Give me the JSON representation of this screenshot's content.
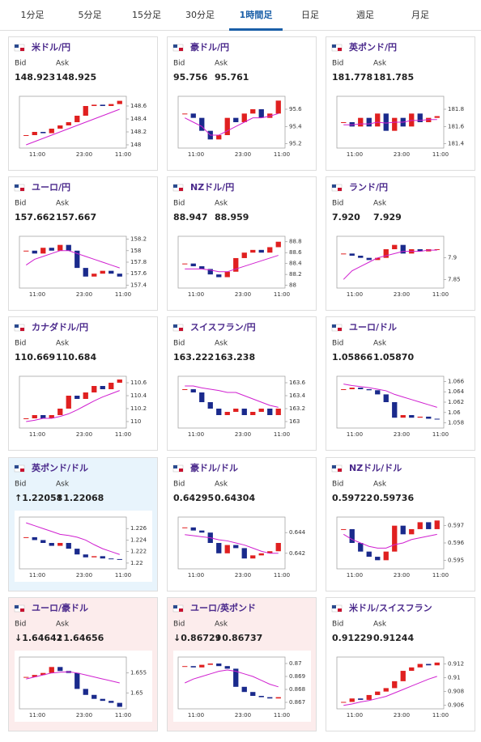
{
  "tabs": {
    "items": [
      "1分足",
      "5分足",
      "15分足",
      "30分足",
      "1時間足",
      "日足",
      "週足",
      "月足"
    ],
    "active": 4
  },
  "bid_label": "Bid",
  "ask_label": "Ask",
  "x_labels": [
    "11:00",
    "23:00",
    "11:00"
  ],
  "cards": [
    {
      "name": "米ドル/円",
      "bid": "148.923",
      "ask": "148.925",
      "chart": {
        "ylim": [
          147.95,
          148.75
        ],
        "yticks": [
          148,
          148.2,
          148.4,
          148.6
        ],
        "close": [
          148.15,
          148.2,
          148.18,
          148.25,
          148.3,
          148.35,
          148.45,
          148.6,
          148.62,
          148.6,
          148.63,
          148.68
        ],
        "ma": [
          148.0,
          148.05,
          148.1,
          148.15,
          148.2,
          148.25,
          148.3,
          148.35,
          148.4,
          148.45,
          148.5,
          148.55
        ]
      }
    },
    {
      "name": "豪ドル/円",
      "bid": "95.756",
      "ask": "95.761",
      "chart": {
        "ylim": [
          95.15,
          95.75
        ],
        "yticks": [
          95.2,
          95.4,
          95.6
        ],
        "close": [
          95.55,
          95.5,
          95.35,
          95.25,
          95.3,
          95.5,
          95.45,
          95.55,
          95.6,
          95.5,
          95.55,
          95.7
        ],
        "ma": [
          95.5,
          95.45,
          95.4,
          95.3,
          95.3,
          95.35,
          95.4,
          95.45,
          95.5,
          95.5,
          95.52,
          95.55
        ]
      }
    },
    {
      "name": "英ポンド/円",
      "bid": "181.778",
      "ask": "181.785",
      "chart": {
        "ylim": [
          181.35,
          181.95
        ],
        "yticks": [
          181.4,
          181.6,
          181.8
        ],
        "close": [
          181.65,
          181.6,
          181.7,
          181.6,
          181.75,
          181.55,
          181.7,
          181.6,
          181.75,
          181.65,
          181.7,
          181.72
        ],
        "ma": [
          181.62,
          181.62,
          181.63,
          181.63,
          181.65,
          181.64,
          181.65,
          181.65,
          181.67,
          181.67,
          181.68,
          181.68
        ]
      }
    },
    {
      "name": "ユーロ/円",
      "bid": "157.662",
      "ask": "157.667",
      "chart": {
        "ylim": [
          157.35,
          158.25
        ],
        "yticks": [
          157.4,
          157.6,
          157.8,
          158,
          158.2
        ],
        "close": [
          158.0,
          157.95,
          158.05,
          158.0,
          158.1,
          158.0,
          157.7,
          157.55,
          157.6,
          157.65,
          157.6,
          157.55
        ],
        "ma": [
          157.75,
          157.85,
          157.9,
          157.95,
          158.0,
          158.0,
          157.95,
          157.9,
          157.85,
          157.8,
          157.75,
          157.7
        ]
      }
    },
    {
      "name": "NZドル/円",
      "bid": "88.947",
      "ask": "88.959",
      "chart": {
        "ylim": [
          87.95,
          88.9
        ],
        "yticks": [
          88,
          88.2,
          88.4,
          88.6,
          88.8
        ],
        "close": [
          88.4,
          88.35,
          88.3,
          88.2,
          88.15,
          88.25,
          88.5,
          88.6,
          88.65,
          88.6,
          88.7,
          88.8
        ],
        "ma": [
          88.3,
          88.3,
          88.3,
          88.28,
          88.25,
          88.25,
          88.3,
          88.35,
          88.4,
          88.45,
          88.5,
          88.55
        ]
      }
    },
    {
      "name": "ランド/円",
      "bid": "7.920",
      "ask": "7.929",
      "chart": {
        "ylim": [
          7.83,
          7.95
        ],
        "yticks": [
          7.85,
          7.9
        ],
        "close": [
          7.91,
          7.905,
          7.9,
          7.895,
          7.9,
          7.92,
          7.93,
          7.91,
          7.92,
          7.915,
          7.92,
          7.92
        ],
        "ma": [
          7.85,
          7.87,
          7.88,
          7.89,
          7.9,
          7.905,
          7.91,
          7.915,
          7.915,
          7.915,
          7.918,
          7.918
        ]
      }
    },
    {
      "name": "カナダドル/円",
      "bid": "110.669",
      "ask": "110.684",
      "chart": {
        "ylim": [
          109.9,
          110.7
        ],
        "yticks": [
          110,
          110.2,
          110.4,
          110.6
        ],
        "close": [
          110.05,
          110.1,
          110.05,
          110.1,
          110.2,
          110.4,
          110.35,
          110.45,
          110.55,
          110.5,
          110.6,
          110.65
        ],
        "ma": [
          110.0,
          110.02,
          110.05,
          110.05,
          110.08,
          110.12,
          110.18,
          110.25,
          110.32,
          110.38,
          110.43,
          110.48
        ]
      }
    },
    {
      "name": "スイスフラン/円",
      "bid": "163.222",
      "ask": "163.238",
      "chart": {
        "ylim": [
          162.9,
          163.7
        ],
        "yticks": [
          163,
          163.2,
          163.4,
          163.6
        ],
        "close": [
          163.5,
          163.45,
          163.3,
          163.2,
          163.1,
          163.15,
          163.2,
          163.1,
          163.15,
          163.2,
          163.1,
          163.2
        ],
        "ma": [
          163.55,
          163.55,
          163.52,
          163.5,
          163.48,
          163.45,
          163.45,
          163.4,
          163.35,
          163.3,
          163.25,
          163.22
        ]
      }
    },
    {
      "name": "ユーロ/ドル",
      "bid": "1.05866",
      "ask": "1.05870",
      "chart": {
        "ylim": [
          1.057,
          1.067
        ],
        "yticks": [
          1.058,
          1.06,
          1.062,
          1.064,
          1.066
        ],
        "close": [
          1.0645,
          1.0648,
          1.0645,
          1.0643,
          1.0635,
          1.062,
          1.059,
          1.0595,
          1.059,
          1.0592,
          1.0588,
          1.0587
        ],
        "ma": [
          1.0655,
          1.0652,
          1.065,
          1.0648,
          1.0645,
          1.0642,
          1.0635,
          1.063,
          1.0625,
          1.062,
          1.0615,
          1.061
        ]
      }
    },
    {
      "name": "英ポンド/ドル",
      "bid": "↑1.22058",
      "ask": "↑1.22068",
      "trend": "up",
      "chart": {
        "ylim": [
          1.219,
          1.228
        ],
        "yticks": [
          1.22,
          1.222,
          1.224,
          1.226
        ],
        "close": [
          1.2245,
          1.224,
          1.2235,
          1.223,
          1.2235,
          1.2225,
          1.2215,
          1.221,
          1.2212,
          1.2208,
          1.2207,
          1.2206
        ],
        "ma": [
          1.227,
          1.2265,
          1.226,
          1.2255,
          1.225,
          1.2248,
          1.2245,
          1.224,
          1.2232,
          1.2225,
          1.222,
          1.2215
        ]
      }
    },
    {
      "name": "豪ドル/ドル",
      "bid": "0.64295",
      "ask": "0.64304",
      "chart": {
        "ylim": [
          0.6405,
          0.6455
        ],
        "yticks": [
          0.642,
          0.644
        ],
        "close": [
          0.6445,
          0.6442,
          0.644,
          0.643,
          0.642,
          0.6428,
          0.6425,
          0.6415,
          0.6418,
          0.642,
          0.6422,
          0.643
        ],
        "ma": [
          0.6438,
          0.6437,
          0.6436,
          0.6435,
          0.6433,
          0.6432,
          0.643,
          0.6428,
          0.6425,
          0.6422,
          0.642,
          0.642
        ]
      }
    },
    {
      "name": "NZドル/ドル",
      "bid": "0.59722",
      "ask": "0.59736",
      "chart": {
        "ylim": [
          0.5945,
          0.5975
        ],
        "yticks": [
          0.595,
          0.596,
          0.597
        ],
        "close": [
          0.5968,
          0.596,
          0.5955,
          0.5952,
          0.595,
          0.5955,
          0.597,
          0.5965,
          0.5968,
          0.5972,
          0.5968,
          0.5973
        ],
        "ma": [
          0.5965,
          0.5962,
          0.596,
          0.5958,
          0.5957,
          0.5957,
          0.5959,
          0.596,
          0.5962,
          0.5963,
          0.5964,
          0.5965
        ]
      }
    },
    {
      "name": "ユーロ/豪ドル",
      "bid": "↓1.64642",
      "ask": "↓1.64656",
      "trend": "down",
      "chart": {
        "ylim": [
          1.646,
          1.659
        ],
        "yticks": [
          1.65,
          1.655
        ],
        "close": [
          1.654,
          1.6545,
          1.655,
          1.6565,
          1.6555,
          1.655,
          1.651,
          1.6495,
          1.6485,
          1.648,
          1.6475,
          1.6465
        ],
        "ma": [
          1.6535,
          1.654,
          1.6545,
          1.655,
          1.6552,
          1.6553,
          1.655,
          1.6545,
          1.654,
          1.6535,
          1.653,
          1.6525
        ]
      }
    },
    {
      "name": "ユーロ/英ポンド",
      "bid": "↓0.86729",
      "ask": "↓0.86737",
      "trend": "down",
      "chart": {
        "ylim": [
          0.8665,
          0.8705
        ],
        "yticks": [
          0.867,
          0.868,
          0.869,
          0.87
        ],
        "close": [
          0.8698,
          0.8697,
          0.8699,
          0.87,
          0.8698,
          0.8696,
          0.8682,
          0.8678,
          0.8675,
          0.8674,
          0.8673,
          0.8674
        ],
        "ma": [
          0.8685,
          0.8688,
          0.869,
          0.8692,
          0.8694,
          0.8695,
          0.8694,
          0.8692,
          0.869,
          0.8687,
          0.8684,
          0.8682
        ]
      }
    },
    {
      "name": "米ドル/スイスフラン",
      "bid": "0.91229",
      "ask": "0.91244",
      "chart": {
        "ylim": [
          0.9055,
          0.913
        ],
        "yticks": [
          0.906,
          0.908,
          0.91,
          0.912
        ],
        "close": [
          0.9065,
          0.907,
          0.9068,
          0.9075,
          0.908,
          0.9085,
          0.9095,
          0.911,
          0.9115,
          0.912,
          0.9118,
          0.9122
        ],
        "ma": [
          0.906,
          0.9062,
          0.9065,
          0.9067,
          0.907,
          0.9073,
          0.9078,
          0.9083,
          0.9088,
          0.9093,
          0.9098,
          0.9102
        ]
      }
    }
  ]
}
